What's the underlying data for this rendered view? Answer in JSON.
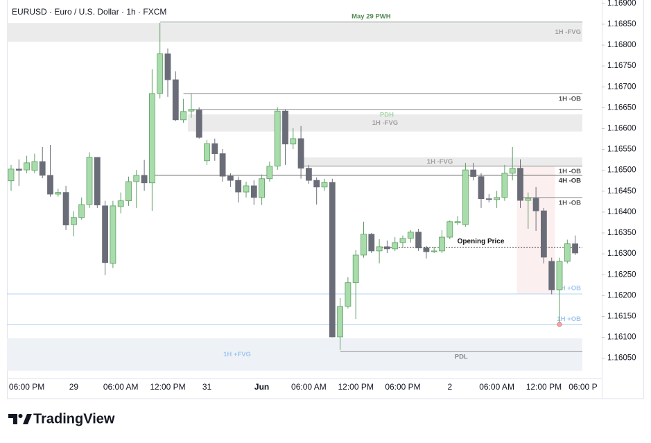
{
  "header": {
    "symbol": "EURUSD · Euro / U.S. Dollar · 1h · FXCM"
  },
  "chart_data": {
    "type": "candlestick",
    "up_color": "#a8dcaa",
    "up_border": "#5f9e63",
    "down_color": "#6a6d78",
    "categories": [
      null,
      null,
      "06:00 PM",
      null,
      null,
      null,
      null,
      null,
      "29",
      null,
      null,
      null,
      null,
      null,
      "06:00 AM",
      null,
      null,
      null,
      null,
      null,
      "12:00 PM",
      null,
      null,
      null,
      null,
      "31",
      null,
      null,
      null,
      null,
      null,
      null,
      "Jun",
      null,
      null,
      null,
      null,
      null,
      "06:00 AM",
      null,
      null,
      null,
      null,
      null,
      "12:00 PM",
      null,
      null,
      null,
      null,
      null,
      "06:00 PM",
      null,
      null,
      null,
      null,
      null,
      "2",
      null,
      null,
      null,
      null,
      null,
      "06:00 AM",
      null,
      null,
      null,
      null,
      null,
      "12:00 PM",
      null,
      null,
      null,
      null,
      "06:00 P"
    ],
    "open": [
      1.16475,
      1.16503,
      1.16501,
      1.165,
      1.16521,
      1.16488,
      1.16443,
      1.16447,
      1.1637,
      1.16387,
      1.16418,
      1.16531,
      1.16415,
      1.16277,
      1.16413,
      1.16427,
      1.16473,
      1.16488,
      1.1647,
      1.16684,
      1.16779,
      1.16717,
      1.16621,
      1.16642,
      1.16644,
      1.16523,
      1.16564,
      1.1654,
      1.16486,
      1.16476,
      1.16448,
      1.16463,
      1.16435,
      1.1648,
      1.1651,
      1.16642,
      1.16563,
      1.16576,
      1.16505,
      1.16476,
      1.1646,
      1.16471,
      1.16101,
      1.16174,
      1.16231,
      1.16297,
      1.16347,
      1.16307,
      1.16317,
      1.16312,
      1.16327,
      1.16337,
      1.16352,
      1.16314,
      1.16305,
      1.16307,
      1.1634,
      1.16374,
      1.1637,
      1.16501,
      1.16485,
      1.16432,
      1.1643,
      1.16435,
      1.16493,
      1.16505,
      1.16428,
      1.16433,
      1.16403,
      1.16282,
      1.16214,
      1.16282,
      1.16324,
      null
    ],
    "high": [
      1.16513,
      1.16526,
      1.16535,
      1.1654,
      1.16556,
      1.16561,
      1.16456,
      1.16463,
      1.16402,
      1.16435,
      1.16543,
      1.16531,
      1.16427,
      1.16427,
      1.16447,
      1.16485,
      1.16501,
      1.16525,
      1.16742,
      1.16853,
      1.16792,
      1.16737,
      1.16671,
      1.16684,
      1.16651,
      1.16573,
      1.16576,
      1.16551,
      1.16493,
      1.16485,
      1.16473,
      1.16476,
      1.1649,
      1.16521,
      1.16651,
      1.16646,
      1.16601,
      1.16606,
      1.16513,
      1.16483,
      1.1648,
      1.1648,
      1.16194,
      1.16244,
      1.16309,
      1.16377,
      1.1635,
      1.16335,
      1.16332,
      1.1634,
      1.16344,
      1.16357,
      1.1636,
      1.16319,
      1.16317,
      1.16357,
      1.1638,
      1.1639,
      1.16518,
      1.16518,
      1.16493,
      1.16443,
      1.16451,
      1.16513,
      1.16556,
      1.16526,
      1.16447,
      1.1646,
      1.1641,
      1.16291,
      1.16291,
      1.16334,
      1.16344,
      null
    ],
    "low": [
      1.16451,
      1.16463,
      1.16493,
      1.16493,
      1.16481,
      1.16437,
      1.16437,
      1.16357,
      1.16342,
      1.16382,
      1.1641,
      1.1641,
      1.16249,
      1.16266,
      1.16397,
      1.16415,
      1.1641,
      1.16451,
      1.16403,
      1.16672,
      1.16676,
      1.16618,
      1.16614,
      1.16626,
      1.16576,
      1.16513,
      1.16523,
      1.16473,
      1.1646,
      1.16423,
      1.16435,
      1.16417,
      1.16417,
      1.16473,
      1.16501,
      1.16513,
      1.16551,
      1.1648,
      1.16468,
      1.16418,
      1.16451,
      1.161,
      1.1607,
      1.16169,
      1.16144,
      1.16291,
      1.16302,
      1.16277,
      1.16302,
      1.16307,
      1.16314,
      1.16327,
      1.16307,
      1.16289,
      1.16302,
      1.16302,
      1.16335,
      1.16369,
      1.16365,
      1.16476,
      1.1641,
      1.16423,
      1.1641,
      1.16427,
      1.16476,
      1.1641,
      1.1636,
      1.16355,
      1.16277,
      1.16203,
      1.16131,
      1.16277,
      1.16297,
      null
    ],
    "close": [
      1.16503,
      1.165,
      1.16518,
      1.16521,
      1.16488,
      1.16443,
      1.16447,
      1.16369,
      1.16387,
      1.16418,
      1.16531,
      1.16417,
      1.16279,
      1.16415,
      1.16427,
      1.16473,
      1.16488,
      1.1647,
      1.16684,
      1.16779,
      1.16717,
      1.16621,
      1.16641,
      1.16646,
      1.16579,
      1.16564,
      1.1654,
      1.16486,
      1.16476,
      1.16448,
      1.16463,
      1.16435,
      1.1648,
      1.1651,
      1.16642,
      1.16563,
      1.16576,
      1.16505,
      1.16476,
      1.1646,
      1.16471,
      1.16101,
      1.16174,
      1.16231,
      1.16297,
      1.16347,
      1.16307,
      1.16317,
      1.16312,
      1.16327,
      1.16337,
      1.16352,
      1.16314,
      1.16305,
      1.16307,
      1.1634,
      1.16377,
      1.16377,
      1.16501,
      1.16485,
      1.16432,
      1.1643,
      1.16435,
      1.16493,
      1.16505,
      1.16428,
      1.16433,
      1.16403,
      1.16292,
      1.16214,
      1.16282,
      1.16324,
      1.16302,
      null
    ],
    "ylim": [
      1.16003,
      1.16908
    ],
    "yticks": [
      {
        "value": 1.1605,
        "label": "1.16050"
      },
      {
        "value": 1.161,
        "label": "1.16100"
      },
      {
        "value": 1.1615,
        "label": "1.16150"
      },
      {
        "value": 1.162,
        "label": "1.16200"
      },
      {
        "value": 1.1625,
        "label": "1.16250"
      },
      {
        "value": 1.163,
        "label": "1.16300"
      },
      {
        "value": 1.1635,
        "label": "1.16350"
      },
      {
        "value": 1.164,
        "label": "1.16400"
      },
      {
        "value": 1.1645,
        "label": "1.16450"
      },
      {
        "value": 1.165,
        "label": "1.16500"
      },
      {
        "value": 1.1655,
        "label": "1.16550"
      },
      {
        "value": 1.166,
        "label": "1.16600"
      },
      {
        "value": 1.1665,
        "label": "1.16650"
      },
      {
        "value": 1.167,
        "label": "1.16700"
      },
      {
        "value": 1.1675,
        "label": "1.16750"
      },
      {
        "value": 1.168,
        "label": "1.16800"
      },
      {
        "value": 1.1685,
        "label": "1.16850"
      },
      {
        "value": 1.169,
        "label": "1.16900"
      }
    ],
    "zones": [
      {
        "label": "1H -FVG",
        "high": 1.16853,
        "low": 1.16808,
        "start": 0,
        "color": "#ebebeb",
        "label_color": "#a0a0a0",
        "label_pos": "inside-right"
      },
      {
        "label": "1H -FVG",
        "high": 1.16634,
        "low": 1.16593,
        "start": 23,
        "color": "#ebebeb",
        "label_color": "#a0a0a0",
        "label_pos": "inside-center"
      },
      {
        "label": "1H -FVG",
        "high": 1.16531,
        "low": 1.1651,
        "start": 37,
        "color": "#ebebeb",
        "label_color": "#a0a0a0",
        "label_pos": "inside-center"
      },
      {
        "label": "1H +FVG",
        "high": 1.16098,
        "low": 1.1602,
        "start": 0,
        "color": "#eef2f7",
        "label_color": "#9fc6ef",
        "label_pos": "inside-left"
      },
      {
        "high": 1.1651,
        "low": 1.16204,
        "start": 65,
        "end": 69,
        "color": "#fcefef"
      }
    ],
    "levels": [
      {
        "label": "May 29 PWH",
        "value": 1.16855,
        "start": 19,
        "color": "#8a9a8a",
        "label_color": "#4f8a55",
        "label_pos": "above-center"
      },
      {
        "label": "1H -OB",
        "value": 1.16684,
        "start": 22,
        "color": "#8a8a8a",
        "label_color": "#555555",
        "label_pos": "below-right"
      },
      {
        "label": "PDH",
        "value": 1.16646,
        "start": 23,
        "color": "#8a8a8a",
        "label_color": "#a5d6a7",
        "label_pos": "below-center"
      },
      {
        "label": "1H -OB",
        "value": 1.1651,
        "start": 37,
        "color": "#8a8a8a",
        "label_color": "#555555",
        "label_pos": "below-right"
      },
      {
        "label": "4H -OB",
        "value": 1.16488,
        "start": 18,
        "color": "#6a6a6a",
        "label_color": "#333333",
        "label_pos": "below-right"
      },
      {
        "label": "1H -OB",
        "value": 1.16435,
        "start": 65,
        "color": "#8a8a8a",
        "label_color": "#555555",
        "label_pos": "below-right"
      },
      {
        "label": "Opening Price",
        "value": 1.16316,
        "start": 47,
        "color": "#333333",
        "label_color": "#111111",
        "label_pos": "above-center",
        "dash": true
      },
      {
        "label": "1H +OB",
        "value": 1.16204,
        "start": 0,
        "color": "#b5d3f0",
        "label_color": "#9fc6ef",
        "label_pos": "above-right"
      },
      {
        "label": "1H +OB",
        "value": 1.1613,
        "start": 0,
        "color": "#b5d3f0",
        "label_color": "#9fc6ef",
        "label_pos": "above-right"
      },
      {
        "label": "PDL",
        "value": 1.16066,
        "start": 42,
        "color": "#8a8a8a",
        "label_color": "#888888",
        "label_pos": "below-center"
      }
    ]
  },
  "footer": {
    "brand": "TradingView"
  }
}
